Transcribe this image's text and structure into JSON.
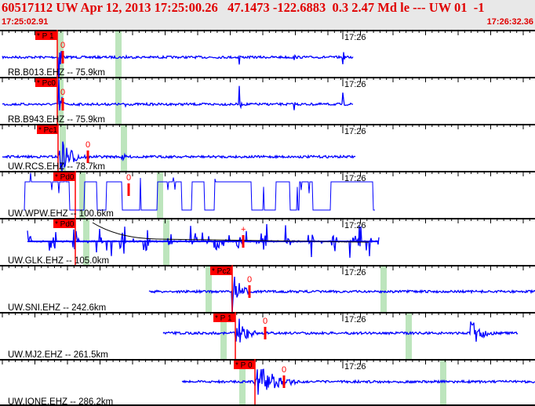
{
  "header": {
    "title": "60517112 UW Apr 12, 2013 17:25:00.26   47.1473 -122.6883  0.3 2.47 Md le --- UW 01  -1",
    "start_time": "17:25:02.91",
    "end_time": "17:26:32.36"
  },
  "colors": {
    "header_text": "#e00000",
    "waveform": "#0000ff",
    "pick": "#ff0000",
    "window": "#bde5bd",
    "background": "#ffffff"
  },
  "chart_data": {
    "type": "line",
    "title": "60517112 UW Apr 12, 2013 17:25:00.26",
    "x_range": [
      "17:25:02.91",
      "17:26:32.36"
    ],
    "tick_label": "17:26",
    "grid": false,
    "traces": [
      {
        "label": "RB.B013.EHZ -- 75.9km",
        "phase": "* P 1",
        "s_marker": "0"
      },
      {
        "label": "RB.B943.EHZ -- 75.9km",
        "phase": "* Pc0",
        "s_marker": "0"
      },
      {
        "label": "UW.RCS.EHZ -- 78.7km",
        "phase": "* Pc1",
        "s_marker": "0"
      },
      {
        "label": "UW.WPW.EHZ -- 100.6km",
        "phase": "* Pd0",
        "s_marker": "0"
      },
      {
        "label": "UW.GLK.EHZ -- 105.0km",
        "phase": "* Pd0",
        "s_marker": "+"
      },
      {
        "label": "UW.SNI.EHZ -- 242.6km",
        "phase": "* Pc2",
        "s_marker": "0"
      },
      {
        "label": "UW.MJ2.EHZ -- 261.5km",
        "phase": "* P 1",
        "s_marker": "0"
      },
      {
        "label": "UW.IONE.EHZ -- 286.2km",
        "phase": "* P 0",
        "s_marker": "0"
      }
    ]
  }
}
